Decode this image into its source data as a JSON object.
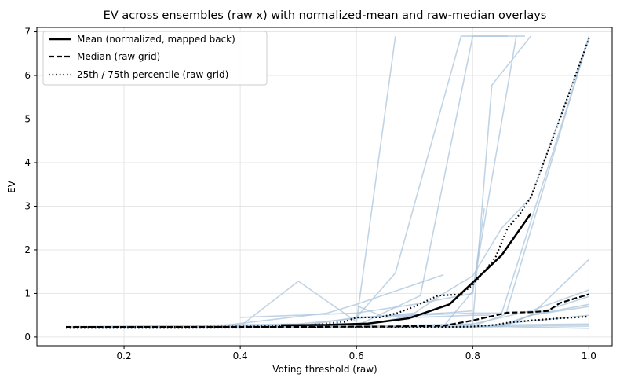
{
  "chart_data": {
    "type": "line",
    "title": "EV across ensembles (raw x) with normalized-mean and raw-median overlays",
    "xlabel": "Voting threshold (raw)",
    "ylabel": "EV",
    "xlim": [
      0.05,
      1.04
    ],
    "ylim": [
      -0.2,
      7.1
    ],
    "xticks": [
      0.2,
      0.4,
      0.6,
      0.8,
      1.0
    ],
    "xtick_labels": [
      "0.2",
      "0.4",
      "0.6",
      "0.8",
      "1.0"
    ],
    "yticks": [
      0,
      1,
      2,
      3,
      4,
      5,
      6,
      7
    ],
    "ytick_labels": [
      "0",
      "1",
      "2",
      "3",
      "4",
      "5",
      "6",
      "7"
    ],
    "grid": true,
    "legend_position": "top-left",
    "colors": {
      "ensemble": "#a9c4db",
      "overlay": "#000000",
      "grid": "#e6e6e6"
    },
    "legend": [
      {
        "label": "Mean (normalized, mapped back)",
        "style": "solid"
      },
      {
        "label": "Median (raw grid)",
        "style": "dashed"
      },
      {
        "label": "25th / 75th percentile (raw grid)",
        "style": "dotted"
      }
    ],
    "ensemble_series": [
      {
        "x": [
          0.1,
          0.33,
          0.4,
          0.5,
          0.6,
          0.667
        ],
        "y": [
          0.22,
          0.22,
          0.25,
          1.28,
          0.35,
          6.9
        ]
      },
      {
        "x": [
          0.1,
          0.5,
          0.6,
          0.667,
          0.78,
          0.8,
          0.89
        ],
        "y": [
          0.23,
          0.25,
          0.45,
          1.47,
          6.9,
          6.9,
          6.9
        ]
      },
      {
        "x": [
          0.1,
          0.6,
          0.71,
          0.8,
          0.86
        ],
        "y": [
          0.24,
          0.26,
          0.95,
          6.9,
          6.9
        ]
      },
      {
        "x": [
          0.1,
          0.5,
          0.7,
          0.75,
          0.8,
          0.85,
          0.9,
          1.0
        ],
        "y": [
          0.23,
          0.3,
          0.55,
          1.0,
          1.4,
          2.5,
          3.2,
          6.85
        ]
      },
      {
        "x": [
          0.1,
          0.7,
          0.8,
          0.833,
          0.9
        ],
        "y": [
          0.22,
          0.25,
          0.3,
          5.78,
          6.9
        ]
      },
      {
        "x": [
          0.1,
          0.75,
          0.8,
          0.875
        ],
        "y": [
          0.22,
          0.25,
          1.05,
          6.9
        ]
      },
      {
        "x": [
          0.1,
          0.8,
          0.857,
          1.0
        ],
        "y": [
          0.22,
          0.25,
          0.52,
          6.9
        ]
      },
      {
        "x": [
          0.1,
          0.6,
          0.7,
          0.8,
          0.85,
          1.0
        ],
        "y": [
          0.22,
          0.25,
          0.5,
          0.55,
          0.55,
          6.85
        ]
      },
      {
        "x": [
          0.1,
          0.8,
          0.85,
          0.9,
          1.0
        ],
        "y": [
          0.22,
          0.24,
          0.28,
          0.5,
          1.78
        ]
      },
      {
        "x": [
          0.1,
          0.6,
          0.8,
          0.9,
          1.0
        ],
        "y": [
          0.22,
          0.25,
          0.3,
          0.6,
          1.08
        ]
      },
      {
        "x": [
          0.1,
          0.85,
          0.9,
          1.0
        ],
        "y": [
          0.22,
          0.24,
          0.5,
          0.93
        ]
      },
      {
        "x": [
          0.1,
          0.85,
          0.9,
          1.0
        ],
        "y": [
          0.22,
          0.24,
          0.5,
          0.75
        ]
      },
      {
        "x": [
          0.1,
          0.85,
          0.9,
          1.0
        ],
        "y": [
          0.22,
          0.24,
          0.5,
          0.7
        ]
      },
      {
        "x": [
          0.1,
          0.8,
          0.85,
          1.0
        ],
        "y": [
          0.22,
          0.24,
          0.3,
          0.5
        ]
      },
      {
        "x": [
          0.1,
          0.8,
          0.85,
          1.0
        ],
        "y": [
          0.22,
          0.24,
          0.28,
          0.3
        ]
      },
      {
        "x": [
          0.1,
          0.8,
          0.85,
          1.0
        ],
        "y": [
          0.22,
          0.24,
          0.26,
          0.25
        ]
      },
      {
        "x": [
          0.1,
          0.8,
          0.85,
          1.0
        ],
        "y": [
          0.22,
          0.23,
          0.24,
          0.2
        ]
      },
      {
        "x": [
          0.4,
          0.6,
          0.7,
          0.8,
          0.82
        ],
        "y": [
          0.45,
          0.55,
          0.75,
          1.0,
          2.95
        ]
      },
      {
        "x": [
          0.36,
          0.55,
          0.6,
          0.75
        ],
        "y": [
          0.25,
          0.55,
          0.75,
          1.43
        ]
      },
      {
        "x": [
          0.6,
          0.65,
          0.75
        ],
        "y": [
          0.72,
          0.45,
          0.55
        ]
      },
      {
        "x": [
          0.1,
          0.6,
          0.7,
          0.8,
          0.83
        ],
        "y": [
          0.22,
          0.28,
          0.45,
          0.5,
          0.5
        ]
      },
      {
        "x": [
          0.6,
          0.75,
          0.8
        ],
        "y": [
          0.45,
          0.55,
          0.6
        ]
      }
    ],
    "mean_series": {
      "name": "Mean (normalized, mapped back)",
      "x": [
        0.47,
        0.55,
        0.62,
        0.69,
        0.76,
        0.8,
        0.85,
        0.9
      ],
      "y": [
        0.27,
        0.28,
        0.31,
        0.43,
        0.75,
        1.25,
        1.88,
        2.83
      ]
    },
    "median_series": {
      "name": "Median (raw grid)",
      "x": [
        0.1,
        0.2,
        0.3,
        0.4,
        0.5,
        0.6,
        0.65,
        0.7,
        0.75,
        0.8,
        0.84,
        0.86,
        0.9,
        0.93,
        0.95,
        1.0
      ],
      "y": [
        0.23,
        0.23,
        0.23,
        0.23,
        0.23,
        0.24,
        0.24,
        0.25,
        0.26,
        0.38,
        0.5,
        0.56,
        0.57,
        0.6,
        0.78,
        0.98
      ]
    },
    "p25_series": {
      "name": "25th percentile (raw grid)",
      "x": [
        0.1,
        0.3,
        0.5,
        0.7,
        0.8,
        0.84,
        0.86,
        0.9,
        0.95,
        1.0
      ],
      "y": [
        0.21,
        0.21,
        0.22,
        0.22,
        0.24,
        0.28,
        0.33,
        0.38,
        0.43,
        0.47
      ]
    },
    "p75_series": {
      "name": "75th percentile (raw grid)",
      "x": [
        0.1,
        0.3,
        0.5,
        0.58,
        0.6,
        0.64,
        0.67,
        0.7,
        0.74,
        0.78,
        0.8,
        0.82,
        0.84,
        0.86,
        0.88,
        0.9,
        0.95,
        1.0
      ],
      "y": [
        0.23,
        0.23,
        0.25,
        0.35,
        0.45,
        0.45,
        0.55,
        0.7,
        0.95,
        0.98,
        1.2,
        1.5,
        1.85,
        2.5,
        2.8,
        3.2,
        5.0,
        6.85
      ]
    }
  }
}
